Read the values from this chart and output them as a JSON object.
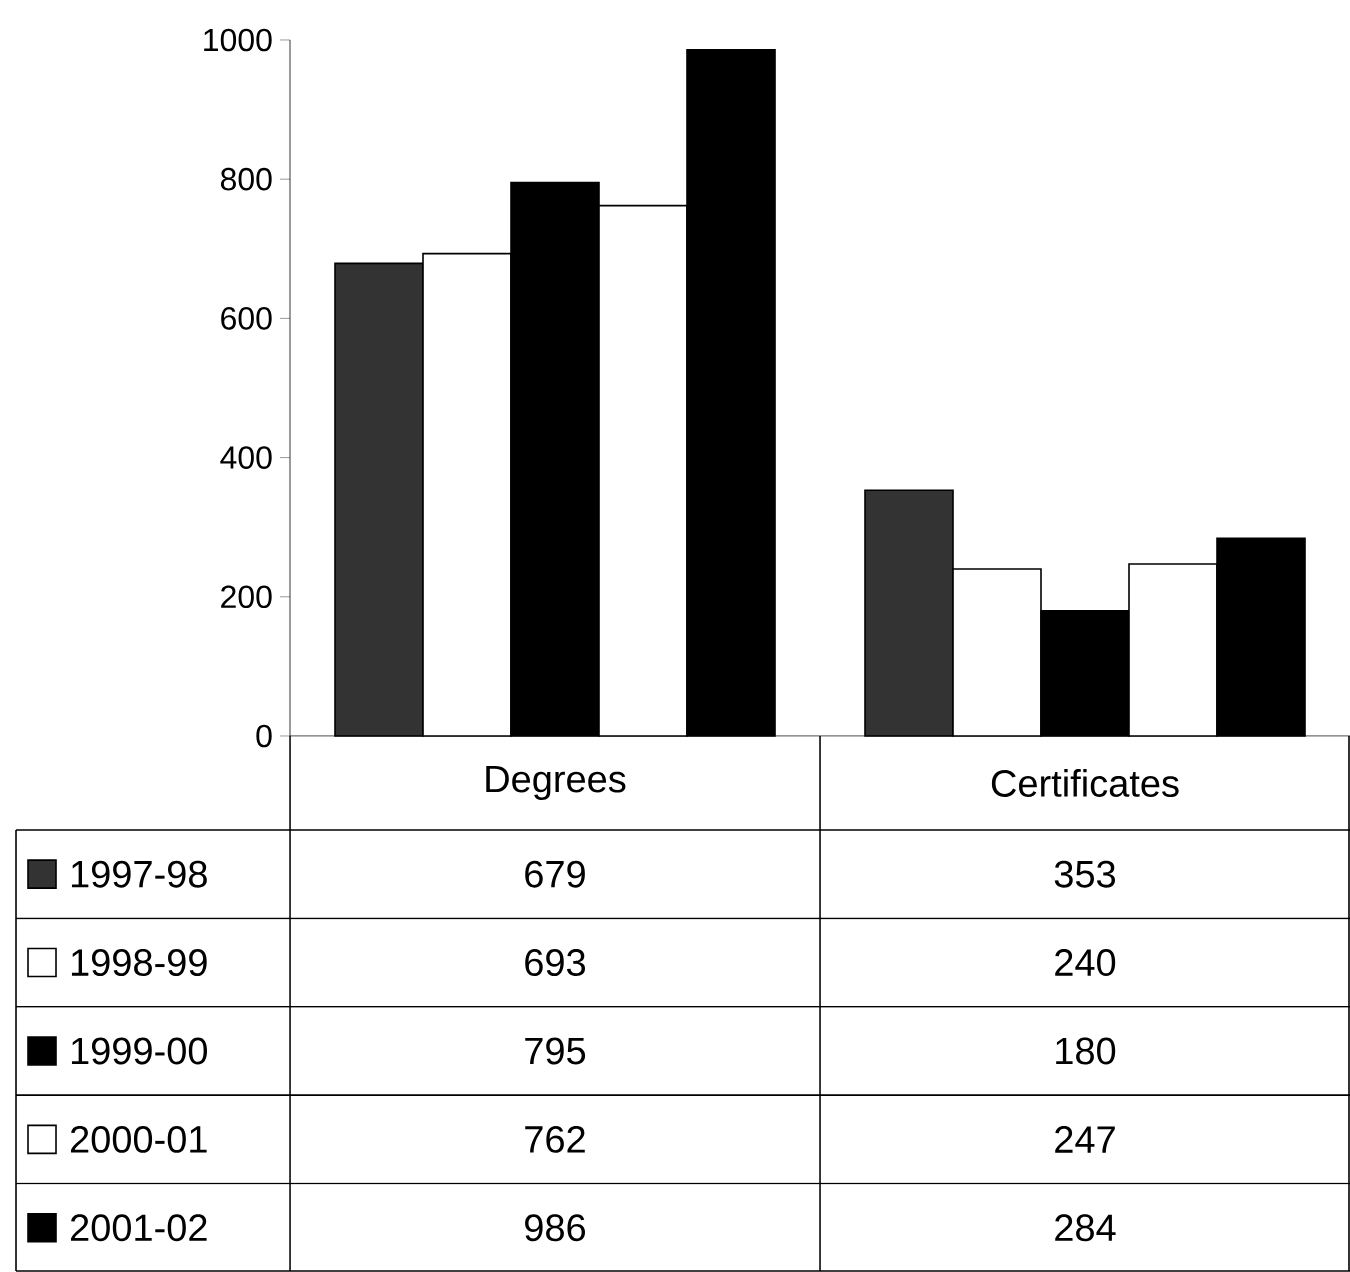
{
  "chart_data": {
    "type": "bar",
    "categories": [
      "Degrees",
      "Certificates"
    ],
    "series": [
      {
        "name": "1997-98",
        "color": "#333333",
        "values": [
          679,
          353
        ]
      },
      {
        "name": "1998-99",
        "color": "#ffffff",
        "values": [
          693,
          240
        ]
      },
      {
        "name": "1999-00",
        "color": "#000000",
        "values": [
          795,
          180
        ]
      },
      {
        "name": "2000-01",
        "color": "#ffffff",
        "values": [
          762,
          247
        ]
      },
      {
        "name": "2001-02",
        "color": "#000000",
        "values": [
          986,
          284
        ]
      }
    ],
    "ylim": [
      0,
      1000
    ],
    "yticks": [
      0,
      200,
      400,
      600,
      800,
      1000
    ],
    "data_labels": true,
    "legend": "bottom left"
  }
}
